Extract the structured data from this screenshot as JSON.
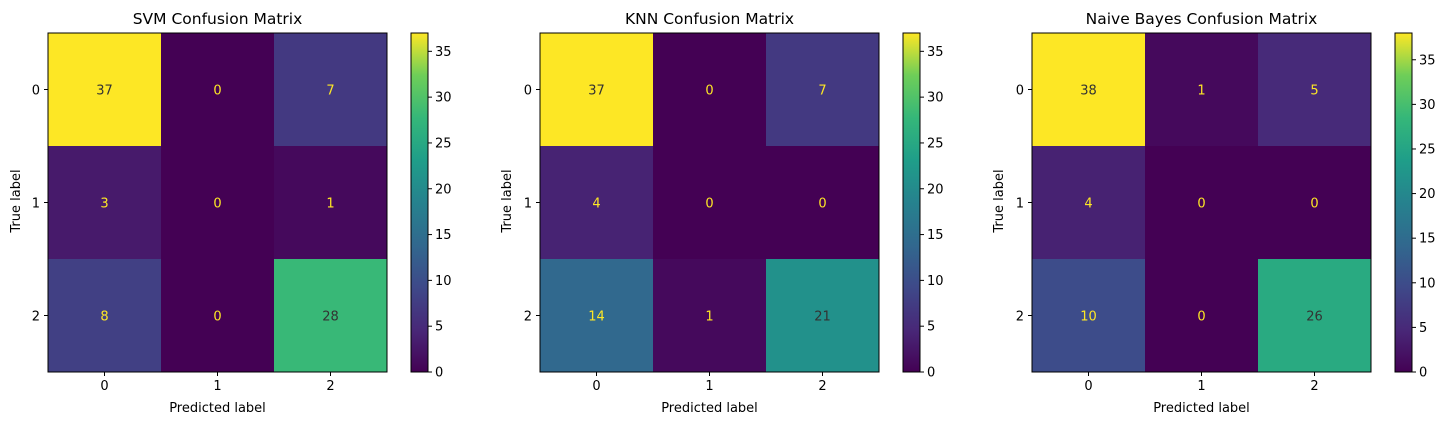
{
  "chart_data": [
    {
      "type": "heatmap",
      "title": "SVM Confusion Matrix",
      "xlabel": "Predicted label",
      "ylabel": "True label",
      "x_categories": [
        "0",
        "1",
        "2"
      ],
      "y_categories": [
        "0",
        "1",
        "2"
      ],
      "values": [
        [
          37,
          0,
          7
        ],
        [
          3,
          0,
          1
        ],
        [
          8,
          0,
          28
        ]
      ],
      "colorbar": {
        "min": 0,
        "max": 37,
        "ticks": [
          0,
          5,
          10,
          15,
          20,
          25,
          30,
          35
        ]
      },
      "colormap": "viridis"
    },
    {
      "type": "heatmap",
      "title": "KNN Confusion Matrix",
      "xlabel": "Predicted label",
      "ylabel": "True label",
      "x_categories": [
        "0",
        "1",
        "2"
      ],
      "y_categories": [
        "0",
        "1",
        "2"
      ],
      "values": [
        [
          37,
          0,
          7
        ],
        [
          4,
          0,
          0
        ],
        [
          14,
          1,
          21
        ]
      ],
      "colorbar": {
        "min": 0,
        "max": 37,
        "ticks": [
          0,
          5,
          10,
          15,
          20,
          25,
          30,
          35
        ]
      },
      "colormap": "viridis"
    },
    {
      "type": "heatmap",
      "title": "Naive Bayes Confusion Matrix",
      "xlabel": "Predicted label",
      "ylabel": "True label",
      "x_categories": [
        "0",
        "1",
        "2"
      ],
      "y_categories": [
        "0",
        "1",
        "2"
      ],
      "values": [
        [
          38,
          1,
          5
        ],
        [
          4,
          0,
          0
        ],
        [
          10,
          0,
          26
        ]
      ],
      "colorbar": {
        "min": 0,
        "max": 38,
        "ticks": [
          0,
          5,
          10,
          15,
          20,
          25,
          30,
          35
        ]
      },
      "colormap": "viridis"
    }
  ]
}
